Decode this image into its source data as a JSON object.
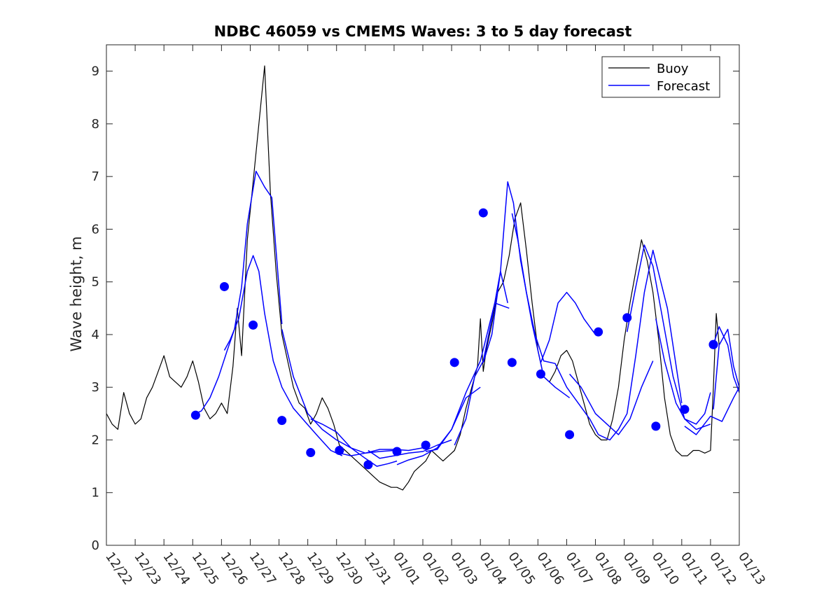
{
  "chart_data": {
    "type": "line",
    "title": "NDBC 46059 vs CMEMS Waves: 3 to 5 day forecast",
    "xlabel": "",
    "ylabel": "Wave height, m",
    "x_tick_labels": [
      "12/22",
      "12/23",
      "12/24",
      "12/25",
      "12/26",
      "12/27",
      "12/28",
      "12/29",
      "12/30",
      "12/31",
      "01/01",
      "01/02",
      "01/03",
      "01/04",
      "01/05",
      "01/06",
      "01/07",
      "01/08",
      "01/09",
      "01/10",
      "01/11",
      "01/12",
      "01/13"
    ],
    "xlim": [
      0,
      22
    ],
    "ylim": [
      0,
      9.5
    ],
    "y_ticks": [
      0,
      1,
      2,
      3,
      4,
      5,
      6,
      7,
      8,
      9
    ],
    "legend": {
      "position": "top-right",
      "entries": [
        "Buoy",
        "Forecast"
      ]
    },
    "colors": {
      "buoy": "#000000",
      "forecast": "#0000ff",
      "marker": "#0000ff",
      "axis": "#262626"
    },
    "series": [
      {
        "name": "Buoy",
        "x": [
          0,
          0.2,
          0.4,
          0.6,
          0.8,
          1.0,
          1.2,
          1.4,
          1.6,
          1.8,
          2.0,
          2.2,
          2.4,
          2.6,
          2.8,
          3.0,
          3.2,
          3.4,
          3.6,
          3.8,
          4.0,
          4.2,
          4.4,
          4.55,
          4.7,
          4.9,
          5.1,
          5.3,
          5.5,
          5.7,
          5.9,
          6.1,
          6.3,
          6.5,
          6.7,
          6.9,
          7.1,
          7.3,
          7.5,
          7.7,
          7.9,
          8.1,
          8.3,
          8.5,
          8.7,
          8.9,
          9.1,
          9.3,
          9.5,
          9.7,
          9.9,
          10.1,
          10.3,
          10.5,
          10.7,
          10.9,
          11.1,
          11.3,
          11.5,
          11.7,
          11.9,
          12.1,
          12.3,
          12.5,
          12.7,
          12.9,
          13.0,
          13.1,
          13.2,
          13.4,
          13.6,
          13.8,
          14.0,
          14.2,
          14.4,
          14.6,
          14.8,
          15.0,
          15.2,
          15.4,
          15.6,
          15.8,
          16.0,
          16.2,
          16.4,
          16.6,
          16.8,
          17.0,
          17.2,
          17.4,
          17.6,
          17.8,
          18.0,
          18.2,
          18.4,
          18.6,
          18.8,
          19.0,
          19.2,
          19.4,
          19.6,
          19.8,
          20.0,
          20.2,
          20.4,
          20.6,
          20.8,
          21.0,
          21.1,
          21.2,
          21.3
        ],
        "values": [
          2.5,
          2.3,
          2.2,
          2.9,
          2.5,
          2.3,
          2.4,
          2.8,
          3.0,
          3.3,
          3.6,
          3.2,
          3.1,
          3.0,
          3.2,
          3.5,
          3.1,
          2.6,
          2.4,
          2.5,
          2.7,
          2.5,
          3.4,
          4.5,
          3.6,
          5.8,
          6.9,
          8.0,
          9.1,
          6.7,
          5.2,
          4.0,
          3.5,
          3.0,
          2.7,
          2.6,
          2.3,
          2.5,
          2.8,
          2.6,
          2.3,
          1.9,
          1.8,
          1.7,
          1.6,
          1.5,
          1.4,
          1.3,
          1.2,
          1.15,
          1.1,
          1.1,
          1.05,
          1.2,
          1.4,
          1.5,
          1.6,
          1.8,
          1.7,
          1.6,
          1.7,
          1.8,
          2.1,
          2.6,
          3.0,
          3.4,
          4.3,
          3.3,
          3.7,
          4.2,
          4.8,
          5.0,
          5.5,
          6.2,
          6.5,
          5.6,
          4.6,
          3.7,
          3.2,
          3.1,
          3.3,
          3.6,
          3.7,
          3.5,
          3.1,
          2.7,
          2.3,
          2.1,
          2.0,
          2.0,
          2.4,
          3.0,
          3.9,
          4.6,
          5.2,
          5.8,
          5.4,
          4.8,
          3.9,
          2.8,
          2.1,
          1.8,
          1.7,
          1.7,
          1.8,
          1.8,
          1.75,
          1.8,
          3.0,
          4.4,
          3.8
        ]
      }
    ],
    "forecast_runs": [
      {
        "x": [
          3.1,
          3.3,
          3.6,
          3.9,
          4.2,
          4.45,
          4.7,
          4.9,
          5.2,
          5.5,
          5.75,
          6.1
        ],
        "values": [
          2.5,
          2.55,
          2.8,
          3.2,
          3.7,
          4.1,
          4.9,
          6.1,
          7.1,
          6.8,
          6.6,
          4.2
        ]
      },
      {
        "x": [
          4.1,
          4.3,
          4.6,
          4.9,
          5.1,
          5.3,
          5.5,
          5.8,
          6.1,
          6.5,
          6.9,
          7.3,
          7.8,
          8.2
        ],
        "values": [
          3.7,
          3.9,
          4.3,
          5.2,
          5.5,
          5.2,
          4.4,
          3.5,
          3.0,
          2.6,
          2.35,
          2.1,
          1.8,
          1.7
        ]
      },
      {
        "x": [
          6.1,
          6.5,
          7.0,
          7.5,
          8.0,
          8.5,
          9.0,
          9.5,
          10.0
        ],
        "values": [
          4.1,
          3.2,
          2.5,
          2.2,
          2.0,
          1.85,
          1.75,
          1.78,
          1.8
        ]
      },
      {
        "x": [
          7.1,
          7.5,
          8.0,
          8.5,
          9.0,
          9.4,
          9.8,
          10.1
        ],
        "values": [
          2.4,
          2.3,
          2.15,
          1.85,
          1.65,
          1.5,
          1.55,
          1.6
        ]
      },
      {
        "x": [
          8.1,
          8.5,
          9.0,
          9.5,
          10.0,
          10.5,
          11.0
        ],
        "values": [
          1.75,
          1.7,
          1.75,
          1.82,
          1.82,
          1.8,
          1.85
        ]
      },
      {
        "x": [
          9.1,
          9.5,
          10.0,
          10.5,
          11.0,
          11.5,
          12.0
        ],
        "values": [
          1.8,
          1.65,
          1.7,
          1.75,
          1.78,
          1.9,
          2.0
        ]
      },
      {
        "x": [
          10.1,
          10.5,
          11.0,
          11.5,
          12.0,
          12.5,
          13.0
        ],
        "values": [
          1.53,
          1.62,
          1.7,
          1.85,
          2.2,
          2.8,
          3.0
        ]
      },
      {
        "x": [
          11.1,
          11.5,
          12.0,
          12.5,
          13.0,
          13.5,
          14.0
        ],
        "values": [
          1.78,
          1.82,
          2.2,
          2.9,
          3.5,
          4.6,
          4.5
        ]
      },
      {
        "x": [
          12.1,
          12.5,
          12.8,
          13.1,
          13.4,
          13.7,
          13.95
        ],
        "values": [
          1.9,
          2.4,
          3.2,
          3.5,
          4.3,
          5.2,
          4.6
        ]
      },
      {
        "x": [
          13.1,
          13.4,
          13.7,
          13.95,
          14.15,
          14.4,
          14.8,
          15.2,
          15.6,
          16.1
        ],
        "values": [
          3.47,
          4.0,
          5.2,
          6.9,
          6.5,
          5.4,
          4.2,
          3.2,
          3.0,
          2.8
        ]
      },
      {
        "x": [
          14.1,
          14.3,
          14.6,
          14.9,
          15.2,
          15.6,
          16.0,
          16.4,
          16.8,
          17.1
        ],
        "values": [
          6.3,
          5.8,
          4.8,
          4.0,
          3.5,
          3.45,
          3.0,
          2.7,
          2.4,
          2.1
        ]
      },
      {
        "x": [
          15.1,
          15.4,
          15.7,
          16.0,
          16.3,
          16.6,
          17.0
        ],
        "values": [
          3.47,
          3.9,
          4.6,
          4.8,
          4.6,
          4.3,
          4.0
        ]
      },
      {
        "x": [
          16.1,
          16.5,
          17.0,
          17.4,
          17.8,
          18.2,
          18.6,
          19.0
        ],
        "values": [
          3.25,
          3.0,
          2.5,
          2.3,
          2.1,
          2.4,
          3.0,
          3.5
        ]
      },
      {
        "x": [
          17.1,
          17.5,
          17.8,
          18.1,
          18.4,
          18.7,
          19.0,
          19.5,
          20.0
        ],
        "values": [
          2.1,
          2.0,
          2.2,
          2.5,
          3.6,
          4.8,
          5.6,
          4.5,
          2.7
        ]
      },
      {
        "x": [
          18.1,
          18.4,
          18.7,
          19.0,
          19.3,
          19.7,
          20.1,
          20.5,
          21.0
        ],
        "values": [
          4.05,
          4.9,
          5.7,
          5.3,
          4.4,
          3.2,
          2.4,
          2.2,
          2.3
        ]
      },
      {
        "x": [
          19.1,
          19.4,
          19.8,
          20.1,
          20.5,
          20.8,
          21.0
        ],
        "values": [
          4.3,
          3.5,
          2.7,
          2.4,
          2.3,
          2.5,
          2.9
        ]
      },
      {
        "x": [
          20.1,
          20.5,
          21.0,
          21.4,
          21.8,
          22.0
        ],
        "values": [
          2.26,
          2.1,
          2.45,
          2.35,
          2.8,
          3.0
        ]
      },
      {
        "x": [
          21.1,
          21.3,
          21.6,
          21.8,
          22.0
        ],
        "values": [
          2.58,
          3.8,
          4.1,
          3.4,
          3.0
        ]
      },
      {
        "x": [
          21.1,
          21.3,
          21.6,
          21.8,
          22.0
        ],
        "values": [
          3.81,
          4.15,
          3.8,
          3.2,
          2.9
        ]
      }
    ],
    "forecast_markers": {
      "x": [
        3.1,
        4.1,
        5.1,
        6.1,
        7.1,
        8.1,
        9.1,
        10.1,
        11.1,
        12.1,
        13.1,
        14.1,
        15.1,
        16.1,
        17.1,
        18.1,
        19.1,
        20.1,
        21.1,
        21.1
      ],
      "values": [
        2.47,
        4.91,
        4.18,
        2.37,
        1.76,
        1.8,
        1.53,
        1.78,
        1.9,
        3.47,
        6.31,
        3.47,
        3.25,
        2.1,
        4.05,
        4.32,
        2.26,
        2.58,
        3.81,
        3.81
      ]
    }
  }
}
